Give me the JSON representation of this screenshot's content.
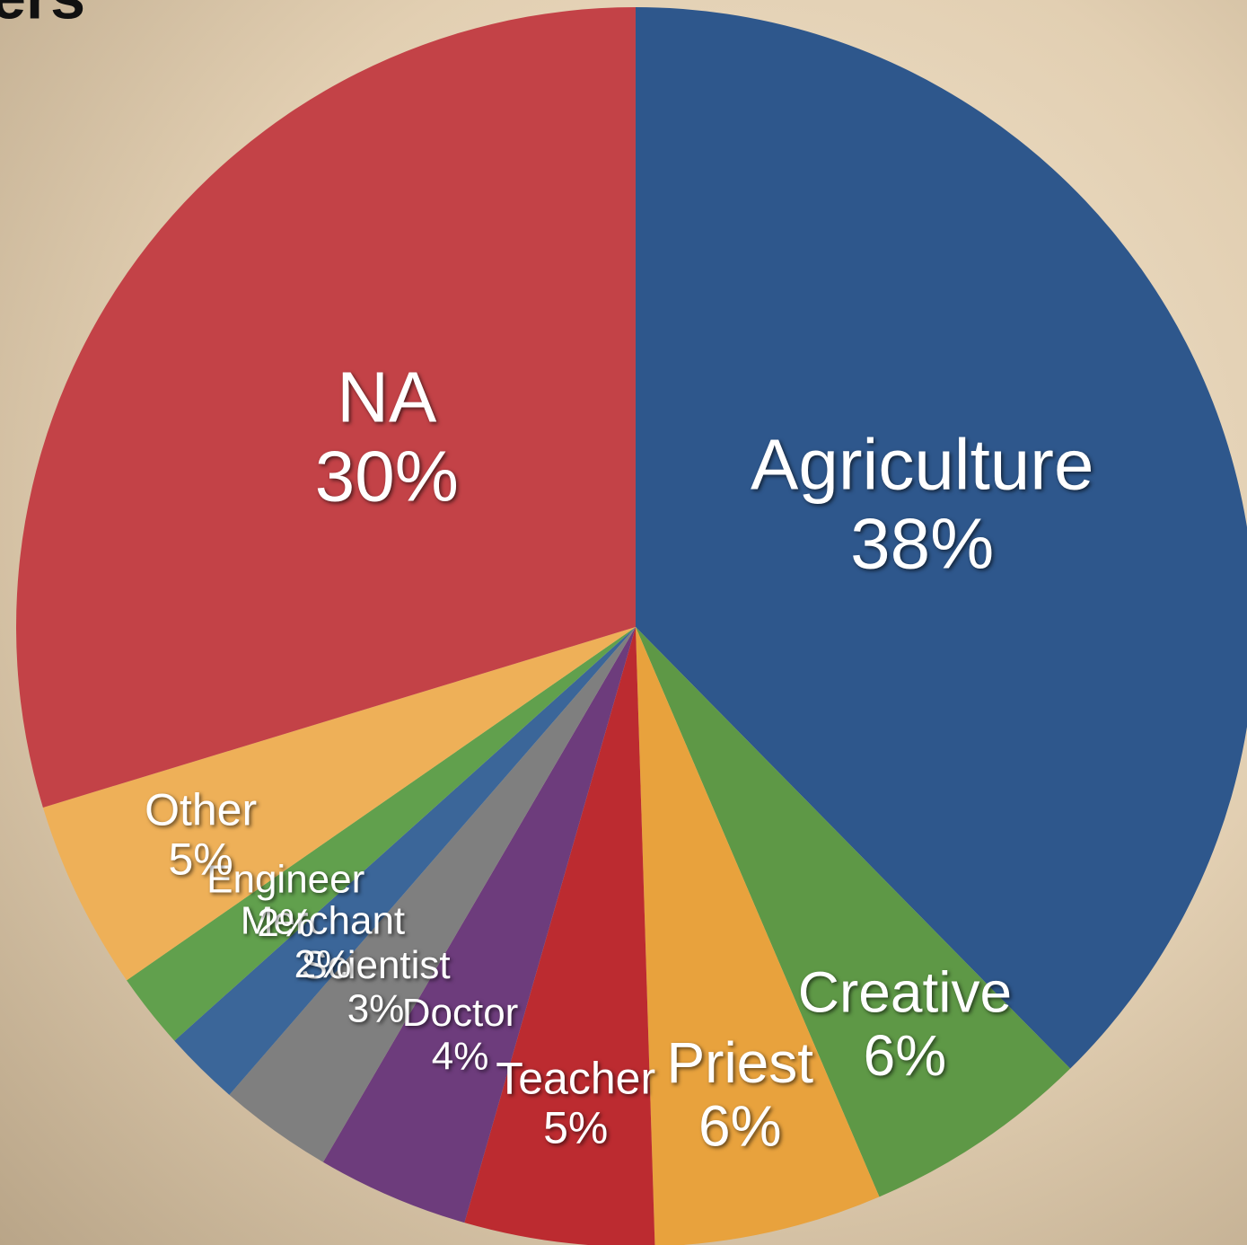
{
  "chart_data": {
    "type": "pie",
    "title": "ers",
    "categories": [
      "Agriculture",
      "Creative",
      "Priest",
      "Teacher",
      "Doctor",
      "Scientist",
      "Merchant",
      "Engineer",
      "Other",
      "NA"
    ],
    "values": [
      38,
      6,
      6,
      5,
      4,
      3,
      2,
      2,
      5,
      30
    ],
    "value_labels": [
      "38%",
      "6%",
      "6%",
      "5%",
      "4%",
      "3%",
      "2%",
      "2%",
      "5%",
      "30%"
    ],
    "colors": [
      "#2e578c",
      "#5e9846",
      "#e8a23d",
      "#bc2b30",
      "#6d3c7c",
      "#7f7f7f",
      "#3b6699",
      "#61a04d",
      "#eeb058",
      "#c34247"
    ]
  }
}
